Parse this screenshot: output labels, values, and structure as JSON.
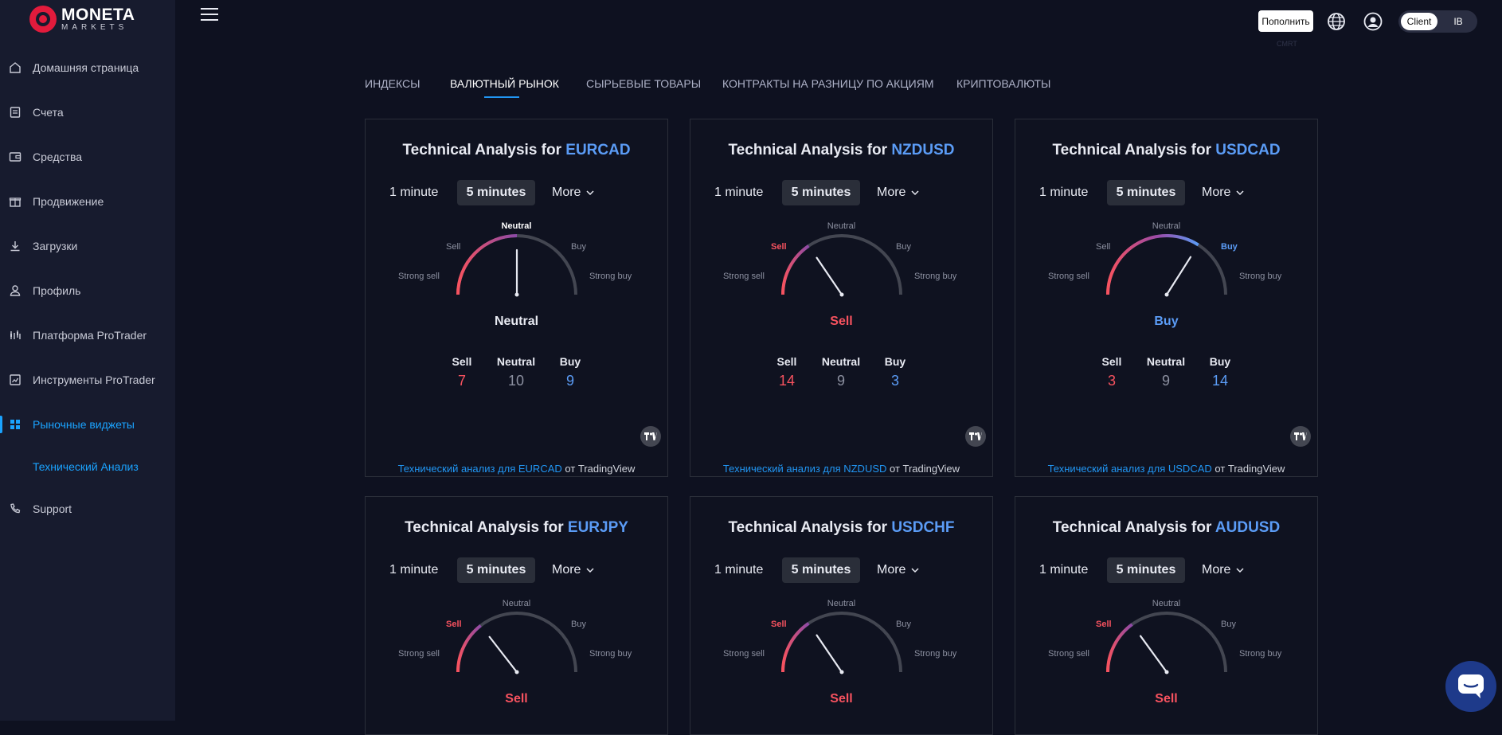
{
  "brand": {
    "name": "MONETA",
    "sub": "MARKETS"
  },
  "sidebar": {
    "items": [
      {
        "label": "Домашняя страница"
      },
      {
        "label": "Счета"
      },
      {
        "label": "Средства"
      },
      {
        "label": "Продвижение"
      },
      {
        "label": "Загрузки"
      },
      {
        "label": "Профиль"
      },
      {
        "label": "Платформа ProTrader"
      },
      {
        "label": "Инструменты ProTrader"
      },
      {
        "label": "Рыночные виджеты"
      },
      {
        "label": "Support"
      }
    ],
    "active_index": 8,
    "subitem": "Технический Анализ"
  },
  "topbar": {
    "deposit_label": "Пополнить",
    "deposit_sub": "CMRT",
    "toggle": {
      "client": "Client",
      "ib": "IB",
      "selected": "Client"
    }
  },
  "tabs": [
    {
      "label": "ИНДЕКСЫ"
    },
    {
      "label": "ВАЛЮТНЫЙ РЫНОК"
    },
    {
      "label": "СЫРЬЕВЫЕ ТОВАРЫ"
    },
    {
      "label": "КОНТРАКТЫ НА РАЗНИЦУ ПО АКЦИЯМ"
    },
    {
      "label": "КРИПТОВАЛЮТЫ"
    }
  ],
  "active_tab": 1,
  "widget_text": {
    "title_prefix": "Technical Analysis for ",
    "timeframes": [
      "1 minute",
      "5 minutes",
      "More"
    ],
    "selected_timeframe": "5 minutes",
    "gauge_labels": {
      "strong_sell": "Strong sell",
      "sell": "Sell",
      "neutral": "Neutral",
      "buy": "Buy",
      "strong_buy": "Strong buy"
    },
    "counts_headers": {
      "sell": "Sell",
      "neutral": "Neutral",
      "buy": "Buy"
    },
    "credit_from": " от TradingView"
  },
  "cards": [
    {
      "symbol": "EURCAD",
      "verdict": "Neutral",
      "verdict_key": "neutral",
      "sell": 7,
      "neutral": 10,
      "buy": 9,
      "needle_pct": 0.5,
      "credit_link": "Технический анализ для EURCAD"
    },
    {
      "symbol": "NZDUSD",
      "verdict": "Sell",
      "verdict_key": "sell",
      "sell": 14,
      "neutral": 9,
      "buy": 3,
      "needle_pct": 0.31,
      "credit_link": "Технический анализ для NZDUSD"
    },
    {
      "symbol": "USDCAD",
      "verdict": "Buy",
      "verdict_key": "buy",
      "sell": 3,
      "neutral": 9,
      "buy": 14,
      "needle_pct": 0.68,
      "credit_link": "Технический анализ для USDCAD"
    },
    {
      "symbol": "EURJPY",
      "verdict": "Sell",
      "verdict_key": "sell",
      "needle_pct": 0.29
    },
    {
      "symbol": "USDCHF",
      "verdict": "Sell",
      "verdict_key": "sell",
      "needle_pct": 0.31
    },
    {
      "symbol": "AUDUSD",
      "verdict": "Sell",
      "verdict_key": "sell",
      "needle_pct": 0.3
    }
  ],
  "colors": {
    "sell": "#f7525f",
    "buy": "#5b9cf6",
    "accent": "#1aa3ff",
    "track": "#434651"
  }
}
